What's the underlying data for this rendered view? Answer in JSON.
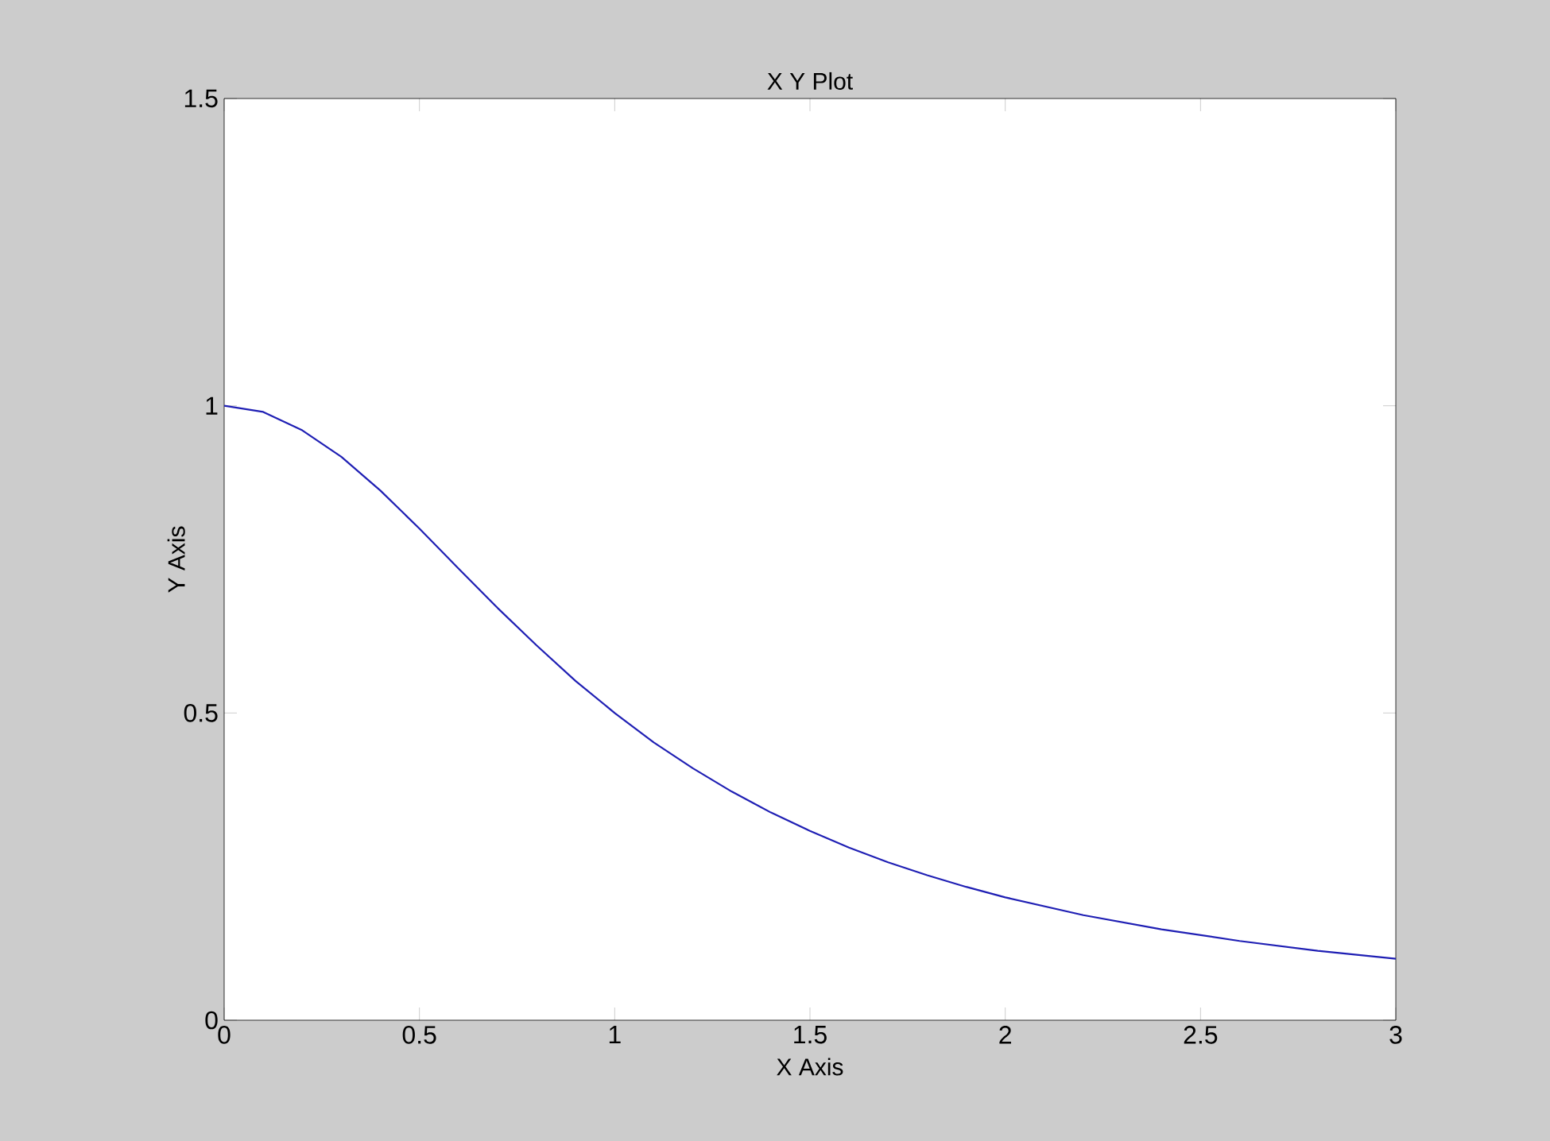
{
  "chart_data": {
    "type": "line",
    "title": "X Y Plot",
    "xlabel": "X Axis",
    "ylabel": "Y Axis",
    "x": [
      0,
      0.1,
      0.2,
      0.3,
      0.4,
      0.5,
      0.6,
      0.7,
      0.8,
      0.9,
      1,
      1.1,
      1.2,
      1.3,
      1.4,
      1.5,
      1.6,
      1.7,
      1.8,
      1.9,
      2,
      2.2,
      2.4,
      2.6,
      2.8,
      3
    ],
    "series": [
      {
        "color": "#1f1fb4",
        "values": [
          1,
          0.99,
          0.96,
          0.917,
          0.862,
          0.8,
          0.735,
          0.671,
          0.61,
          0.552,
          0.5,
          0.452,
          0.41,
          0.372,
          0.338,
          0.308,
          0.281,
          0.257,
          0.236,
          0.217,
          0.2,
          0.171,
          0.148,
          0.129,
          0.113,
          0.1
        ]
      }
    ],
    "xlim": [
      0,
      3
    ],
    "ylim": [
      0,
      1.5
    ],
    "xticks": [
      0,
      0.5,
      1,
      1.5,
      2,
      2.5,
      3
    ],
    "yticks": [
      0,
      0.5,
      1,
      1.5
    ],
    "marker": "none",
    "line_style": "solid"
  }
}
